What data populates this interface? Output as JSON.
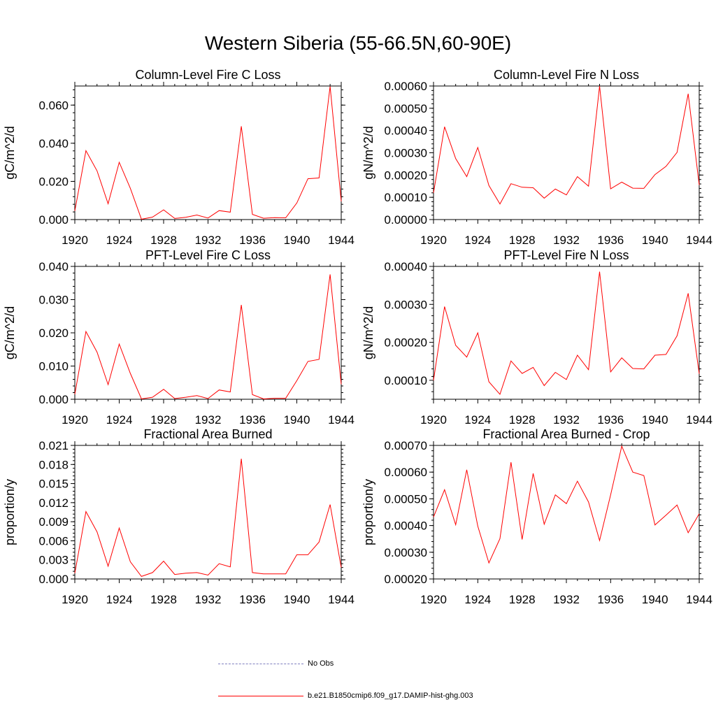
{
  "title": "Western Siberia (55-66.5N,60-90E)",
  "legend": {
    "items": [
      {
        "label": "No Obs",
        "color": "#7f7fbf",
        "style": "dashed"
      },
      {
        "label": "b.e21.B1850cmip6.f09_g17.DAMIP-hist-ghg.003",
        "color": "#ff0000",
        "style": "solid"
      }
    ]
  },
  "chart_data": [
    {
      "type": "line",
      "title": "Column-Level Fire C Loss",
      "xlabel": "",
      "ylabel": "gC/m^2/d",
      "xlim": [
        1920,
        1944
      ],
      "ylim": [
        0,
        0.07
      ],
      "xticks": [
        1920,
        1924,
        1928,
        1932,
        1936,
        1940,
        1944
      ],
      "yticks": [
        0,
        0.02,
        0.04,
        0.06
      ],
      "ytick_labels": [
        "0.000",
        "0.020",
        "0.040",
        "0.060"
      ],
      "x": [
        1920,
        1921,
        1922,
        1923,
        1924,
        1925,
        1926,
        1927,
        1928,
        1929,
        1930,
        1931,
        1932,
        1933,
        1934,
        1935,
        1936,
        1937,
        1938,
        1939,
        1940,
        1941,
        1942,
        1943,
        1944
      ],
      "series": [
        {
          "values": [
            0.0045,
            0.0361,
            0.0255,
            0.0083,
            0.03,
            0.0164,
            0.0002,
            0.0013,
            0.0051,
            0.0006,
            0.0012,
            0.0024,
            0.0008,
            0.0047,
            0.0039,
            0.0489,
            0.0027,
            0.0007,
            0.001,
            0.0009,
            0.0087,
            0.0214,
            0.0218,
            0.0698,
            0.0095
          ],
          "color": "#ff0000"
        }
      ]
    },
    {
      "type": "line",
      "title": "Column-Level Fire N Loss",
      "xlabel": "",
      "ylabel": "gN/m^2/d",
      "xlim": [
        1920,
        1944
      ],
      "ylim": [
        0,
        0.0006
      ],
      "xticks": [
        1920,
        1924,
        1928,
        1932,
        1936,
        1940,
        1944
      ],
      "yticks": [
        0,
        0.0001,
        0.0002,
        0.0003,
        0.0004,
        0.0005,
        0.0006
      ],
      "ytick_labels": [
        "0.00000",
        "0.00010",
        "0.00020",
        "0.00030",
        "0.00040",
        "0.00050",
        "0.00060"
      ],
      "x": [
        1920,
        1921,
        1922,
        1923,
        1924,
        1925,
        1926,
        1927,
        1928,
        1929,
        1930,
        1931,
        1932,
        1933,
        1934,
        1935,
        1936,
        1937,
        1938,
        1939,
        1940,
        1941,
        1942,
        1943,
        1944
      ],
      "series": [
        {
          "values": [
            0.00012,
            0.000417,
            0.000274,
            0.000193,
            0.000324,
            0.000153,
            7e-05,
            0.000161,
            0.000145,
            0.000143,
            9.6e-05,
            0.000137,
            0.000111,
            0.000193,
            0.00015,
            0.0006,
            0.000138,
            0.000168,
            0.000141,
            0.00014,
            0.000202,
            0.000239,
            0.000302,
            0.000565,
            0.000155
          ],
          "color": "#ff0000"
        }
      ]
    },
    {
      "type": "line",
      "title": "PFT-Level Fire C Loss",
      "xlabel": "",
      "ylabel": "gC/m^2/d",
      "xlim": [
        1920,
        1944
      ],
      "ylim": [
        0,
        0.04
      ],
      "xticks": [
        1920,
        1924,
        1928,
        1932,
        1936,
        1940,
        1944
      ],
      "yticks": [
        0,
        0.01,
        0.02,
        0.03,
        0.04
      ],
      "ytick_labels": [
        "0.000",
        "0.010",
        "0.020",
        "0.030",
        "0.040"
      ],
      "x": [
        1920,
        1921,
        1922,
        1923,
        1924,
        1925,
        1926,
        1927,
        1928,
        1929,
        1930,
        1931,
        1932,
        1933,
        1934,
        1935,
        1936,
        1937,
        1938,
        1939,
        1940,
        1941,
        1942,
        1943,
        1944
      ],
      "series": [
        {
          "values": [
            0.0015,
            0.0204,
            0.0142,
            0.0044,
            0.0166,
            0.0078,
            0.0001,
            0.0006,
            0.003,
            0.0002,
            0.0006,
            0.0011,
            0.0002,
            0.0028,
            0.0022,
            0.0284,
            0.0014,
            0.0001,
            0.0003,
            0.0003,
            0.0056,
            0.0114,
            0.012,
            0.0376,
            0.0045
          ],
          "color": "#ff0000"
        }
      ]
    },
    {
      "type": "line",
      "title": "PFT-Level Fire N Loss",
      "xlabel": "",
      "ylabel": "gN/m^2/d",
      "xlim": [
        1920,
        1944
      ],
      "ylim": [
        5e-05,
        0.0004
      ],
      "xticks": [
        1920,
        1924,
        1928,
        1932,
        1936,
        1940,
        1944
      ],
      "yticks": [
        0.0001,
        0.0002,
        0.0003,
        0.0004
      ],
      "ytick_labels": [
        "0.00010",
        "0.00020",
        "0.00030",
        "0.00040"
      ],
      "x": [
        1920,
        1921,
        1922,
        1923,
        1924,
        1925,
        1926,
        1927,
        1928,
        1929,
        1930,
        1931,
        1932,
        1933,
        1934,
        1935,
        1936,
        1937,
        1938,
        1939,
        1940,
        1941,
        1942,
        1943,
        1944
      ],
      "series": [
        {
          "values": [
            0.0001,
            0.000294,
            0.000192,
            0.000161,
            0.000225,
            9.6e-05,
            6.3e-05,
            0.000151,
            0.000118,
            0.000134,
            8.6e-05,
            0.000121,
            0.000102,
            0.000166,
            0.000128,
            0.000386,
            0.000122,
            0.000159,
            0.000131,
            0.00013,
            0.000166,
            0.000168,
            0.000217,
            0.000329,
            0.000117
          ],
          "color": "#ff0000"
        }
      ]
    },
    {
      "type": "line",
      "title": "Fractional Area Burned",
      "xlabel": "",
      "ylabel": "proportion/y",
      "xlim": [
        1920,
        1944
      ],
      "ylim": [
        0,
        0.021
      ],
      "xticks": [
        1920,
        1924,
        1928,
        1932,
        1936,
        1940,
        1944
      ],
      "yticks": [
        0,
        0.003,
        0.006,
        0.009,
        0.012,
        0.015,
        0.018,
        0.021
      ],
      "ytick_labels": [
        "0.000",
        "0.003",
        "0.006",
        "0.009",
        "0.012",
        "0.015",
        "0.018",
        "0.021"
      ],
      "x": [
        1920,
        1921,
        1922,
        1923,
        1924,
        1925,
        1926,
        1927,
        1928,
        1929,
        1930,
        1931,
        1932,
        1933,
        1934,
        1935,
        1936,
        1937,
        1938,
        1939,
        1940,
        1941,
        1942,
        1943,
        1944
      ],
      "series": [
        {
          "values": [
            0.0009,
            0.0106,
            0.0074,
            0.002,
            0.008,
            0.0027,
            0.0004,
            0.001,
            0.0028,
            0.0007,
            0.0009,
            0.001,
            0.0006,
            0.0024,
            0.0019,
            0.0189,
            0.001,
            0.0008,
            0.0008,
            0.0008,
            0.0038,
            0.0038,
            0.0058,
            0.0117,
            0.0018
          ],
          "color": "#ff0000"
        }
      ]
    },
    {
      "type": "line",
      "title": "Fractional Area Burned - Crop",
      "xlabel": "",
      "ylabel": "proportion/y",
      "xlim": [
        1920,
        1944
      ],
      "ylim": [
        0.0002,
        0.0007
      ],
      "xticks": [
        1920,
        1924,
        1928,
        1932,
        1936,
        1940,
        1944
      ],
      "yticks": [
        0.0002,
        0.0003,
        0.0004,
        0.0005,
        0.0006,
        0.0007
      ],
      "ytick_labels": [
        "0.00020",
        "0.00030",
        "0.00040",
        "0.00050",
        "0.00060",
        "0.00070"
      ],
      "x": [
        1920,
        1921,
        1922,
        1923,
        1924,
        1925,
        1926,
        1927,
        1928,
        1929,
        1930,
        1931,
        1932,
        1933,
        1934,
        1935,
        1936,
        1937,
        1938,
        1939,
        1940,
        1941,
        1942,
        1943,
        1944
      ],
      "series": [
        {
          "values": [
            0.000432,
            0.000534,
            0.000403,
            0.000609,
            0.000398,
            0.00026,
            0.000351,
            0.000637,
            0.000348,
            0.000595,
            0.000405,
            0.000515,
            0.000482,
            0.000566,
            0.000488,
            0.000344,
            0.000515,
            0.000697,
            0.0006,
            0.000587,
            0.000402,
            0.000439,
            0.000477,
            0.000373,
            0.000444
          ],
          "color": "#ff0000"
        }
      ]
    }
  ]
}
